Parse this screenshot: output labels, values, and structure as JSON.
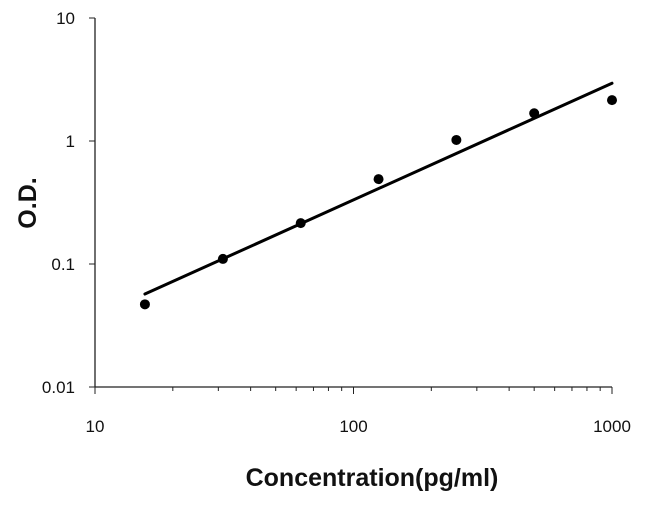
{
  "chart_data": {
    "type": "scatter",
    "title": "",
    "xlabel": "Concentration(pg/ml)",
    "ylabel": "O.D.",
    "xscale": "log",
    "yscale": "log",
    "xlim": [
      10,
      1000
    ],
    "ylim": [
      0.01,
      10
    ],
    "x_ticks": [
      10,
      100,
      1000
    ],
    "x_tick_labels": [
      "10",
      "100",
      "1000"
    ],
    "y_ticks": [
      0.01,
      0.1,
      1,
      10
    ],
    "y_tick_labels": [
      "0.01",
      "0.1",
      "1",
      "10"
    ],
    "grid": false,
    "legend": "none",
    "series": [
      {
        "x": [
          15.6,
          31.25,
          62.5,
          125,
          250,
          500,
          1000
        ],
        "y": [
          0.047,
          0.11,
          0.215,
          0.49,
          1.02,
          1.68,
          2.15
        ],
        "marker": "filled-circle",
        "color": "#000000"
      }
    ],
    "trendline": {
      "type": "power",
      "x": [
        15.6,
        1000
      ],
      "y": [
        0.057,
        2.95
      ],
      "color": "#000000"
    }
  }
}
